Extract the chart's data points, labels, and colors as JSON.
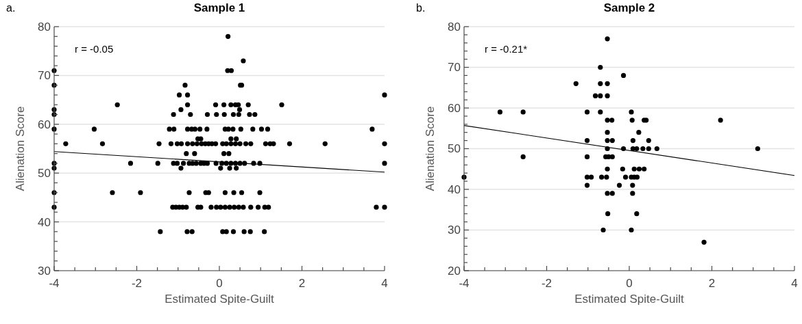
{
  "chart_data": [
    {
      "type": "scatter",
      "title": "Sample 1",
      "xlabel": "Estimated Spite-Guilt",
      "ylabel": "Alienation Score",
      "annotations": [
        "a.",
        "r = -0.05"
      ],
      "xlim": [
        -4,
        4
      ],
      "ylim": [
        30,
        80
      ],
      "xticks": [
        -4,
        {
          "value": -3.5,
          "label": null
        },
        {
          "value": -3,
          "label": null
        },
        {
          "value": -2.5,
          "label": null
        },
        -2,
        {
          "value": -1.5,
          "label": null
        },
        {
          "value": -1,
          "label": null
        },
        {
          "value": -0.5,
          "label": null
        },
        0,
        {
          "value": 0.5,
          "label": null
        },
        {
          "value": 1,
          "label": null
        },
        {
          "value": 1.5,
          "label": null
        },
        2,
        {
          "value": 2.5,
          "label": null
        },
        {
          "value": 3,
          "label": null
        },
        {
          "value": 3.5,
          "label": null
        },
        4
      ],
      "yticks": [
        30,
        {
          "value": 32,
          "label": null
        },
        {
          "value": 34,
          "label": null
        },
        {
          "value": 36,
          "label": null
        },
        {
          "value": 38,
          "label": null
        },
        40,
        {
          "value": 42,
          "label": null
        },
        {
          "value": 44,
          "label": null
        },
        {
          "value": 46,
          "label": null
        },
        {
          "value": 48,
          "label": null
        },
        50,
        {
          "value": 52,
          "label": null
        },
        {
          "value": 54,
          "label": null
        },
        {
          "value": 56,
          "label": null
        },
        {
          "value": 58,
          "label": null
        },
        60,
        {
          "value": 62,
          "label": null
        },
        {
          "value": 64,
          "label": null
        },
        {
          "value": 66,
          "label": null
        },
        {
          "value": 68,
          "label": null
        },
        70,
        {
          "value": 72,
          "label": null
        },
        {
          "value": 74,
          "label": null
        },
        {
          "value": 76,
          "label": null
        },
        {
          "value": 78,
          "label": null
        },
        80
      ],
      "grid": "y",
      "series": [
        {
          "type": "scatter",
          "marker": "circle",
          "color": "#000000",
          "x": [
            -4,
            -4,
            -4,
            -4,
            -4,
            -4,
            -4,
            -4,
            -4,
            -3.72,
            -3.03,
            -2.83,
            -2.47,
            -2.15,
            -2.59,
            -1.91,
            -1.49,
            -1.46,
            -1.43,
            -1.21,
            -1.1,
            -1.17,
            -1.02,
            -0.92,
            -1.11,
            -1.13,
            -1.05,
            -0.97,
            -0.89,
            -0.8,
            -1.11,
            -1.02,
            -0.87,
            -0.97,
            -0.93,
            -0.93,
            -0.83,
            -0.77,
            -0.77,
            -0.7,
            -0.77,
            -0.67,
            -0.59,
            -0.47,
            -0.77,
            -0.65,
            -0.54,
            -0.52,
            -0.45,
            -0.43,
            -0.34,
            -0.26,
            -0.18,
            -0.09,
            -0.8,
            -0.6,
            -0.73,
            -0.65,
            -0.56,
            -0.45,
            -0.37,
            -0.29,
            -0.08,
            -0.73,
            -0.33,
            -0.26,
            -0.52,
            -0.45,
            -0.2,
            -0.07,
            -0.78,
            -0.66,
            -0.29,
            -0.07,
            -0.3,
            -0.09,
            0.21,
            0.58,
            0.2,
            0.29,
            0.51,
            0.54,
            4,
            0.11,
            0.28,
            0.39,
            0.46,
            0.7,
            1.51,
            0.49,
            0.12,
            0.34,
            0.47,
            0.73,
            0.86,
            0.14,
            0.22,
            0.33,
            0.52,
            0.81,
            1.02,
            1.17,
            3.7,
            0.28,
            0.41,
            0.08,
            0.17,
            0.28,
            0.39,
            0.5,
            0.64,
            0.76,
            1.12,
            1.23,
            1.31,
            1.7,
            2.56,
            4,
            0.11,
            0.23,
            0.06,
            0.17,
            0.28,
            0.39,
            0.5,
            0.61,
            0.83,
            0.98,
            4,
            0.03,
            0.25,
            0.41,
            0.14,
            0.35,
            0.54,
            0.98,
            0.03,
            0.14,
            0.25,
            0.36,
            0.47,
            0.58,
            0.76,
            0.94,
            1.1,
            1.19,
            3.8,
            4,
            0.08,
            0.17,
            0.34,
            0.6,
            0.75,
            1.09
          ],
          "values": [
            71,
            68,
            63,
            62,
            59,
            52,
            51,
            46,
            43,
            56,
            59,
            56,
            64,
            52,
            46,
            46,
            52,
            56,
            38,
            59,
            59,
            56,
            56,
            56,
            62,
            43,
            43,
            43,
            43,
            43,
            52,
            52,
            52,
            66,
            63,
            51,
            68,
            66,
            64,
            62,
            59,
            59,
            59,
            59,
            56,
            56,
            56,
            57,
            57,
            56,
            56,
            56,
            56,
            56,
            54,
            54,
            52,
            52,
            52,
            52,
            52,
            52,
            52,
            46,
            46,
            46,
            43,
            43,
            43,
            43,
            38,
            38,
            62,
            62,
            59,
            64,
            78,
            73,
            71,
            71,
            68,
            68,
            66,
            64,
            64,
            64,
            64,
            64,
            64,
            63,
            62,
            62,
            62,
            62,
            62,
            59,
            59,
            59,
            59,
            59,
            59,
            59,
            59,
            57,
            57,
            56,
            56,
            56,
            56,
            56,
            56,
            56,
            56,
            56,
            56,
            56,
            56,
            56,
            54,
            54,
            52,
            52,
            52,
            52,
            52,
            52,
            52,
            52,
            52,
            51,
            51,
            51,
            46,
            46,
            46,
            46,
            43,
            43,
            43,
            43,
            43,
            43,
            43,
            43,
            43,
            43,
            43,
            43,
            38,
            38,
            38,
            38,
            38,
            38
          ]
        },
        {
          "type": "line",
          "color": "#000000",
          "x": [
            -4,
            4
          ],
          "values": [
            54.4,
            50.2
          ]
        }
      ]
    },
    {
      "type": "scatter",
      "title": "Sample 2",
      "xlabel": "Estimated Spite-Guilt",
      "ylabel": "Alienation Score",
      "annotations": [
        "b.",
        "r = -0.21*"
      ],
      "xlim": [
        -4,
        4
      ],
      "ylim": [
        20,
        80
      ],
      "xticks": [
        -4,
        {
          "value": -3.5,
          "label": null
        },
        {
          "value": -3,
          "label": null
        },
        {
          "value": -2.5,
          "label": null
        },
        -2,
        {
          "value": -1.5,
          "label": null
        },
        {
          "value": -1,
          "label": null
        },
        {
          "value": -0.5,
          "label": null
        },
        0,
        {
          "value": 0.5,
          "label": null
        },
        {
          "value": 1,
          "label": null
        },
        {
          "value": 1.5,
          "label": null
        },
        2,
        {
          "value": 2.5,
          "label": null
        },
        {
          "value": 3,
          "label": null
        },
        {
          "value": 3.5,
          "label": null
        },
        4
      ],
      "yticks": [
        20,
        {
          "value": 22,
          "label": null
        },
        {
          "value": 24,
          "label": null
        },
        {
          "value": 26,
          "label": null
        },
        {
          "value": 28,
          "label": null
        },
        30,
        {
          "value": 32,
          "label": null
        },
        {
          "value": 34,
          "label": null
        },
        {
          "value": 36,
          "label": null
        },
        {
          "value": 38,
          "label": null
        },
        40,
        {
          "value": 42,
          "label": null
        },
        {
          "value": 44,
          "label": null
        },
        {
          "value": 46,
          "label": null
        },
        {
          "value": 48,
          "label": null
        },
        50,
        {
          "value": 52,
          "label": null
        },
        {
          "value": 54,
          "label": null
        },
        {
          "value": 56,
          "label": null
        },
        {
          "value": 58,
          "label": null
        },
        60,
        {
          "value": 62,
          "label": null
        },
        {
          "value": 64,
          "label": null
        },
        {
          "value": 66,
          "label": null
        },
        {
          "value": 68,
          "label": null
        },
        70,
        {
          "value": 72,
          "label": null
        },
        {
          "value": 74,
          "label": null
        },
        {
          "value": 76,
          "label": null
        },
        {
          "value": 78,
          "label": null
        },
        80
      ],
      "grid": "y",
      "series": [
        {
          "type": "scatter",
          "marker": "circle",
          "color": "#000000",
          "x": [
            -4,
            -3.13,
            -2.57,
            -2.57,
            -1.29,
            -1.02,
            -1.02,
            -1.02,
            -1.02,
            -0.92,
            -1.02,
            -0.7,
            -0.7,
            -0.53,
            -0.82,
            -0.7,
            -0.53,
            -0.7,
            -0.53,
            -0.53,
            -0.42,
            -0.53,
            -0.53,
            -0.41,
            -0.53,
            -0.57,
            -0.5,
            -0.41,
            -0.53,
            -0.67,
            -0.55,
            -0.53,
            -0.41,
            -0.52,
            -0.63,
            -0.24,
            -0.14,
            -0.14,
            -0.16,
            0.05,
            0.07,
            0.36,
            0.41,
            2.21,
            0.23,
            0.09,
            0.47,
            0.09,
            0.18,
            0.33,
            0.47,
            0.67,
            3.11,
            0.12,
            0.24,
            0.36,
            -0.09,
            0.05,
            0.12,
            0.19,
            0.08,
            0.08,
            0.18,
            0.05,
            1.81
          ],
          "values": [
            43,
            59,
            59,
            48,
            66,
            59,
            52,
            48,
            43,
            43,
            41,
            70,
            66,
            66,
            63,
            63,
            63,
            59,
            77,
            57,
            57,
            54,
            52,
            52,
            50,
            48,
            48,
            48,
            45,
            43,
            43,
            39,
            39,
            34,
            30,
            41,
            68,
            50,
            45,
            59,
            57,
            57,
            57,
            57,
            54,
            52,
            52,
            50,
            50,
            50,
            50,
            50,
            50,
            45,
            45,
            45,
            43,
            43,
            43,
            43,
            41,
            39,
            34,
            30,
            27
          ]
        },
        {
          "type": "line",
          "color": "#000000",
          "x": [
            -4,
            4
          ],
          "values": [
            55.7,
            43.4
          ]
        }
      ]
    }
  ]
}
